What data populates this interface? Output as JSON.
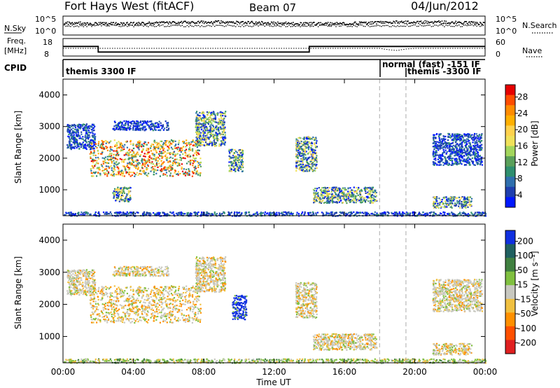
{
  "header": {
    "title": "Fort Hays West (fitACF)",
    "beam": "Beam 07",
    "date": "04/Jun/2012"
  },
  "strip_labels": {
    "nsky": "N.Sky",
    "nsearch": "N.Search",
    "freq_line1": "Freq.",
    "freq_line2": "[MHz]",
    "nave": "Nave",
    "cpid": "CPID"
  },
  "strip_ticks": {
    "noise_left": [
      "10^5",
      "10^0"
    ],
    "noise_right": [
      "10^5",
      "10^0"
    ],
    "freq_left": [
      "18",
      "8"
    ],
    "freq_right": [
      "60",
      "0"
    ]
  },
  "cpid": [
    {
      "start": "00:00",
      "label": "themis 3300 IF"
    },
    {
      "start": "18:00",
      "label": "normal (fast) -151 IF"
    },
    {
      "start": "19:30",
      "label": "themis -3300 IF"
    }
  ],
  "colorbars": {
    "power": {
      "label": "Power [dB]",
      "ticks": [
        "28",
        "24",
        "20",
        "16",
        "12",
        "8",
        "4"
      ],
      "colors": [
        "#e60000",
        "#ff4d00",
        "#ff8c00",
        "#ffb000",
        "#ffd24d",
        "#f0e15a",
        "#a3d65c",
        "#5aa05a",
        "#2f8f6f",
        "#2f6fae",
        "#1f3fae",
        "#0018ff"
      ]
    },
    "velocity": {
      "label": "Velocity [m s⁻¹]",
      "ticks": [
        "200",
        "100",
        "50",
        "15",
        "-15",
        "-50",
        "-100",
        "-200"
      ],
      "colors": [
        "#1030e0",
        "#206060",
        "#408040",
        "#80c040",
        "#c8c8c0",
        "#f0c040",
        "#ff9000",
        "#ff5000",
        "#e02020"
      ]
    }
  },
  "chart_data": [
    {
      "type": "heatmap",
      "name": "power-panel",
      "xlabel": "",
      "ylabel": "Slant Range [km]",
      "x_range_hours": [
        0,
        24
      ],
      "ylim": [
        180,
        4500
      ],
      "y_ticks": [
        "1000",
        "2000",
        "3000",
        "4000"
      ],
      "grid": false,
      "dashed_markers_ut": [
        "18:00",
        "19:30"
      ],
      "echo_bands": [
        {
          "t_start": 1.5,
          "t_end": 7.8,
          "r_start": 1450,
          "r_end": 2600,
          "level": "high"
        },
        {
          "t_start": 7.5,
          "t_end": 9.2,
          "r_start": 2400,
          "r_end": 3500,
          "level": "medium"
        },
        {
          "t_start": 0.2,
          "t_end": 1.8,
          "r_start": 2300,
          "r_end": 3100,
          "level": "low"
        },
        {
          "t_start": 2.8,
          "t_end": 6.0,
          "r_start": 2900,
          "r_end": 3200,
          "level": "low"
        },
        {
          "t_start": 2.8,
          "t_end": 3.8,
          "r_start": 650,
          "r_end": 1100,
          "level": "medium"
        },
        {
          "t_start": 9.4,
          "t_end": 10.2,
          "r_start": 1600,
          "r_end": 2300,
          "level": "medium"
        },
        {
          "t_start": 13.2,
          "t_end": 14.4,
          "r_start": 1600,
          "r_end": 2700,
          "level": "medium"
        },
        {
          "t_start": 14.2,
          "t_end": 17.8,
          "r_start": 600,
          "r_end": 1100,
          "level": "medium"
        },
        {
          "t_start": 21.0,
          "t_end": 23.8,
          "r_start": 1800,
          "r_end": 2800,
          "level": "low"
        },
        {
          "t_start": 21.0,
          "t_end": 23.2,
          "r_start": 450,
          "r_end": 800,
          "level": "medium"
        },
        {
          "t_start": 0.0,
          "t_end": 24.0,
          "r_start": 190,
          "r_end": 320,
          "level": "low"
        }
      ]
    },
    {
      "type": "heatmap",
      "name": "velocity-panel",
      "xlabel": "Time UT",
      "ylabel": "Slant Range [km]",
      "x_range_hours": [
        0,
        24
      ],
      "x_ticks": [
        "00:00",
        "04:00",
        "08:00",
        "12:00",
        "16:00",
        "20:00",
        "00:00"
      ],
      "ylim": [
        180,
        4500
      ],
      "y_ticks": [
        "1000",
        "2000",
        "3000",
        "4000"
      ],
      "grid": false,
      "dashed_markers_ut": [
        "18:00",
        "19:30"
      ],
      "echo_bands": [
        {
          "t_start": 1.5,
          "t_end": 7.8,
          "r_start": 1450,
          "r_end": 2600,
          "level": "slow-negative"
        },
        {
          "t_start": 7.5,
          "t_end": 9.2,
          "r_start": 2400,
          "r_end": 3500,
          "level": "near-zero"
        },
        {
          "t_start": 0.2,
          "t_end": 1.8,
          "r_start": 2300,
          "r_end": 3100,
          "level": "near-zero"
        },
        {
          "t_start": 2.8,
          "t_end": 6.0,
          "r_start": 2900,
          "r_end": 3200,
          "level": "near-zero"
        },
        {
          "t_start": 9.6,
          "t_end": 10.4,
          "r_start": 1550,
          "r_end": 2300,
          "level": "fast-positive"
        },
        {
          "t_start": 13.2,
          "t_end": 14.4,
          "r_start": 1600,
          "r_end": 2700,
          "level": "near-zero"
        },
        {
          "t_start": 14.2,
          "t_end": 17.8,
          "r_start": 600,
          "r_end": 1100,
          "level": "near-zero"
        },
        {
          "t_start": 21.0,
          "t_end": 23.8,
          "r_start": 1800,
          "r_end": 2800,
          "level": "near-zero"
        },
        {
          "t_start": 21.0,
          "t_end": 23.2,
          "r_start": 450,
          "r_end": 800,
          "level": "near-zero"
        },
        {
          "t_start": 0.0,
          "t_end": 24.0,
          "r_start": 190,
          "r_end": 320,
          "level": "slow-positive"
        }
      ]
    },
    {
      "type": "line",
      "name": "frequency-strip",
      "x_hours": [
        0,
        2,
        2,
        14,
        14,
        24
      ],
      "y_mhz": [
        13.5,
        13.5,
        10.3,
        10.3,
        13.5,
        13.5
      ]
    }
  ]
}
